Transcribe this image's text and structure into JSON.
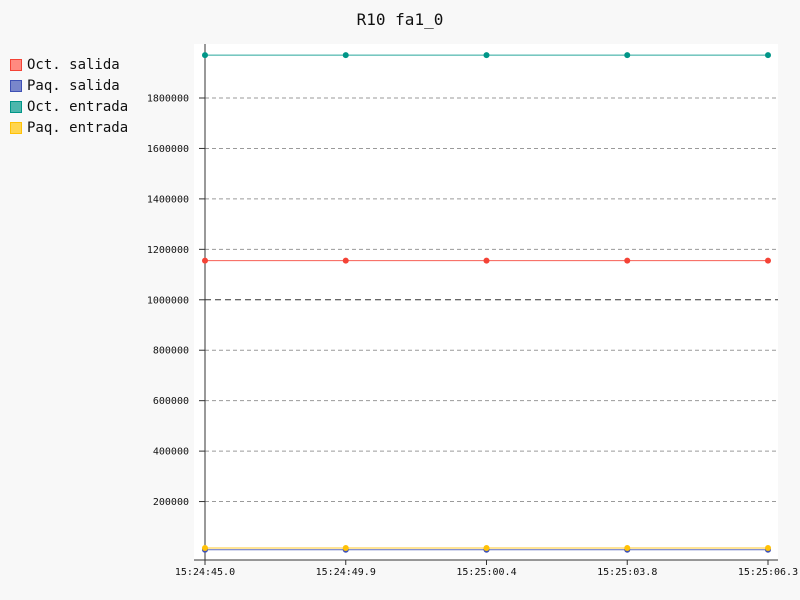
{
  "chart_data": {
    "type": "line",
    "title": "R10 fa1_0",
    "categories": [
      "15:24:45.0",
      "15:24:49.9",
      "15:25:00.4",
      "15:25:03.8",
      "15:25:06.3"
    ],
    "y_ticks": [
      "200000",
      "400000",
      "600000",
      "800000",
      "1000000",
      "1200000",
      "1400000",
      "1600000",
      "1800000"
    ],
    "ylim": [
      0,
      2000000
    ],
    "grid": true,
    "legend_position": "top-left",
    "series": [
      {
        "name": "Oct. salida",
        "color": "#f44336",
        "swatch": "#ff8a80",
        "values": [
          1155000,
          1155000,
          1155000,
          1155000,
          1155000
        ]
      },
      {
        "name": "Paq. salida",
        "color": "#3f51b5",
        "swatch": "#7986cb",
        "values": [
          9000,
          9000,
          9000,
          9000,
          9000
        ]
      },
      {
        "name": "Oct. entrada",
        "color": "#009688",
        "swatch": "#4db6ac",
        "values": [
          1970000,
          1970000,
          1970000,
          1970000,
          1970000
        ]
      },
      {
        "name": "Paq. entrada",
        "color": "#ffc107",
        "swatch": "#ffd54f",
        "values": [
          16000,
          16000,
          16000,
          16000,
          16000
        ]
      }
    ]
  }
}
